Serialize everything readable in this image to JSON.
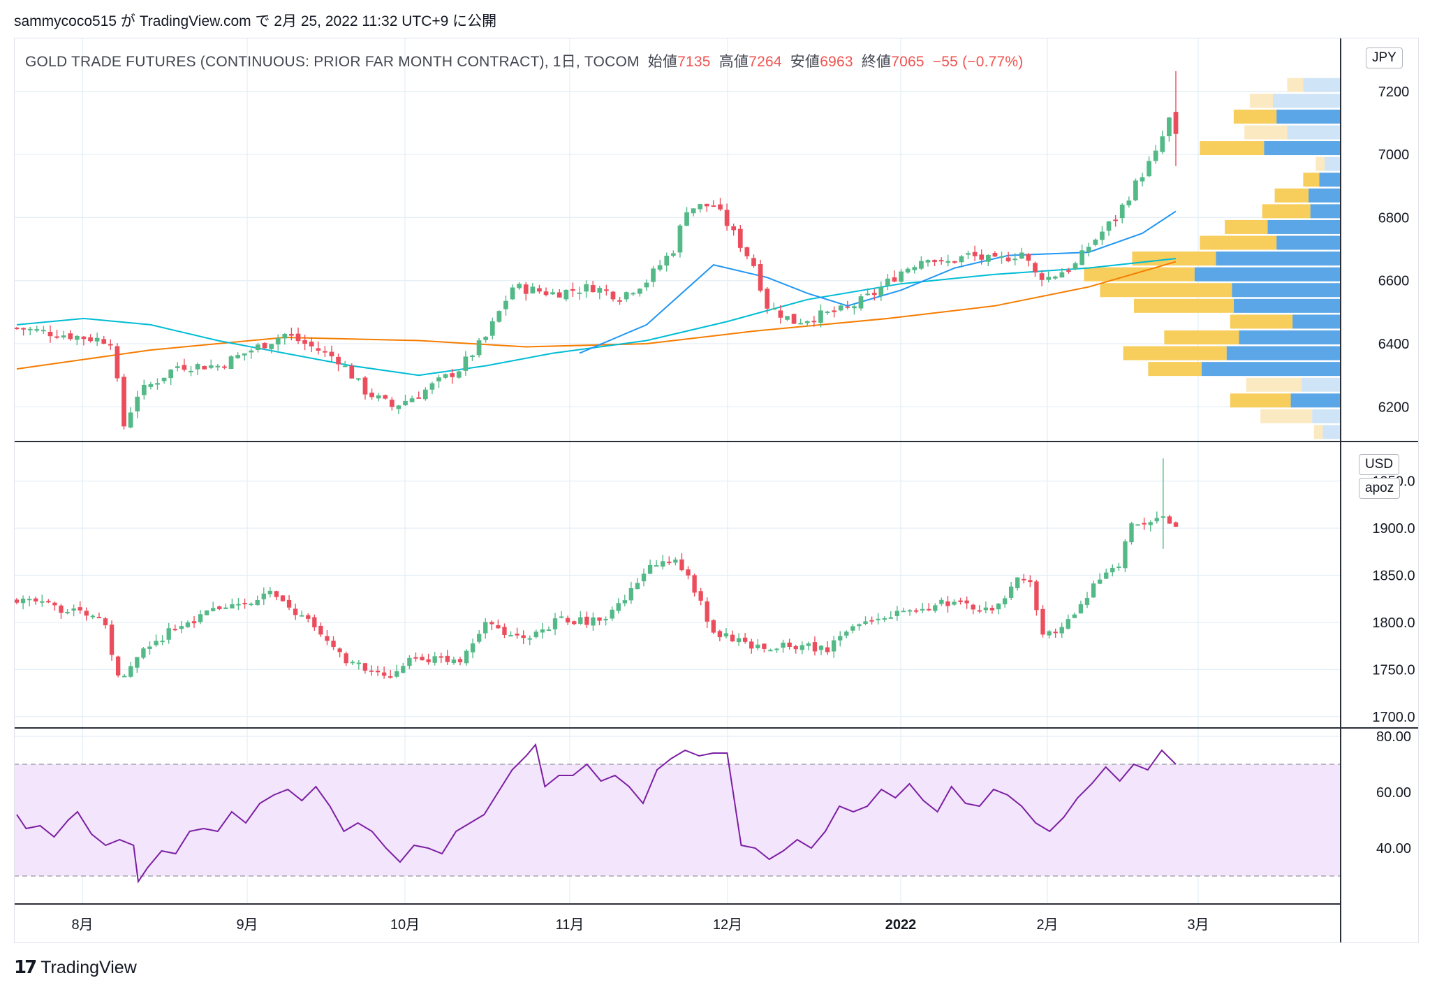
{
  "header": "sammycoco515 が TradingView.com で 2月 25, 2022 11:32 UTC+9 に公開",
  "legend": {
    "symbol": "GOLD TRADE FUTURES (CONTINUOUS: PRIOR FAR MONTH CONTRACT), 1日, TOCOM",
    "open_label": "始値",
    "open": "7135",
    "high_label": "高値",
    "high": "7264",
    "low_label": "安値",
    "low": "6963",
    "close_label": "終値",
    "close": "7065",
    "change": "−55 (−0.77%)"
  },
  "badges": {
    "main_currency": "JPY",
    "mid_currency": "USD",
    "mid_symbol": "apoz"
  },
  "footer": {
    "logo_mark": "17",
    "brand": "TradingView"
  },
  "colors": {
    "up": "#26a69a",
    "candle_up": "#53b987",
    "down": "#eb4d5c",
    "sma_short": "#2196f3",
    "sma_mid": "#00bcd4",
    "sma_long": "#f57c00",
    "vp_up": "#5aa6e6",
    "vp_down": "#f7cd5c",
    "rsi_line": "#7b1fa2",
    "rsi_band": "#f3e5fb"
  },
  "chart_data": [
    {
      "type": "candlestick",
      "title": "GOLD TRADE FUTURES (CONTINUOUS: PRIOR FAR MONTH CONTRACT), 1日, TOCOM",
      "currency": "JPY",
      "x_ticks": [
        "8月",
        "9月",
        "10月",
        "11月",
        "12月",
        "2022",
        "2月",
        "3月"
      ],
      "y_ticks": [
        6200,
        6400,
        6600,
        6800,
        7000,
        7200
      ],
      "ylim": [
        6090,
        7370
      ],
      "waypoints_close": [
        [
          0,
          6450
        ],
        [
          10,
          6420
        ],
        [
          14,
          6410
        ],
        [
          16,
          6140
        ],
        [
          18,
          6240
        ],
        [
          24,
          6330
        ],
        [
          30,
          6330
        ],
        [
          40,
          6430
        ],
        [
          48,
          6350
        ],
        [
          52,
          6250
        ],
        [
          56,
          6200
        ],
        [
          60,
          6240
        ],
        [
          66,
          6320
        ],
        [
          70,
          6420
        ],
        [
          74,
          6580
        ],
        [
          80,
          6560
        ],
        [
          86,
          6580
        ],
        [
          90,
          6550
        ],
        [
          94,
          6600
        ],
        [
          98,
          6700
        ],
        [
          100,
          6830
        ],
        [
          104,
          6840
        ],
        [
          106,
          6780
        ],
        [
          110,
          6650
        ],
        [
          112,
          6520
        ],
        [
          116,
          6470
        ],
        [
          120,
          6490
        ],
        [
          124,
          6510
        ],
        [
          128,
          6560
        ],
        [
          132,
          6630
        ],
        [
          136,
          6680
        ],
        [
          138,
          6650
        ],
        [
          142,
          6680
        ],
        [
          146,
          6660
        ],
        [
          150,
          6690
        ],
        [
          152,
          6620
        ],
        [
          154,
          6610
        ],
        [
          158,
          6650
        ],
        [
          160,
          6710
        ],
        [
          164,
          6800
        ],
        [
          168,
          6940
        ],
        [
          170,
          7000
        ],
        [
          172,
          7110
        ],
        [
          173,
          7065
        ]
      ],
      "last_candle": {
        "open": 7135,
        "high": 7264,
        "low": 6963,
        "close": 7065
      },
      "sma_short": [
        [
          84,
          6370
        ],
        [
          94,
          6460
        ],
        [
          104,
          6650
        ],
        [
          112,
          6610
        ],
        [
          118,
          6560
        ],
        [
          124,
          6520
        ],
        [
          132,
          6570
        ],
        [
          140,
          6640
        ],
        [
          148,
          6680
        ],
        [
          160,
          6690
        ],
        [
          168,
          6750
        ],
        [
          173,
          6820
        ]
      ],
      "sma_mid": [
        [
          0,
          6460
        ],
        [
          10,
          6480
        ],
        [
          20,
          6460
        ],
        [
          30,
          6410
        ],
        [
          40,
          6370
        ],
        [
          50,
          6330
        ],
        [
          60,
          6300
        ],
        [
          70,
          6330
        ],
        [
          80,
          6370
        ],
        [
          94,
          6410
        ],
        [
          106,
          6470
        ],
        [
          118,
          6540
        ],
        [
          132,
          6590
        ],
        [
          146,
          6620
        ],
        [
          160,
          6640
        ],
        [
          173,
          6670
        ]
      ],
      "sma_long": [
        [
          0,
          6320
        ],
        [
          20,
          6380
        ],
        [
          40,
          6420
        ],
        [
          60,
          6410
        ],
        [
          76,
          6390
        ],
        [
          94,
          6400
        ],
        [
          110,
          6440
        ],
        [
          130,
          6480
        ],
        [
          146,
          6520
        ],
        [
          160,
          6580
        ],
        [
          173,
          6660
        ]
      ],
      "volume_profile": [
        {
          "price": 7220,
          "up": 0.21,
          "down": 0.09
        },
        {
          "price": 7170,
          "up": 0.38,
          "down": 0.13
        },
        {
          "price": 7120,
          "up": 0.36,
          "down": 0.24
        },
        {
          "price": 7070,
          "up": 0.3,
          "down": 0.24
        },
        {
          "price": 7020,
          "up": 0.43,
          "down": 0.36
        },
        {
          "price": 6970,
          "up": 0.09,
          "down": 0.05
        },
        {
          "price": 6920,
          "up": 0.12,
          "down": 0.09
        },
        {
          "price": 6870,
          "up": 0.18,
          "down": 0.19
        },
        {
          "price": 6820,
          "up": 0.17,
          "down": 0.27
        },
        {
          "price": 6770,
          "up": 0.41,
          "down": 0.24
        },
        {
          "price": 6720,
          "up": 0.36,
          "down": 0.43
        },
        {
          "price": 6670,
          "up": 0.7,
          "down": 0.47
        },
        {
          "price": 6620,
          "up": 0.82,
          "down": 0.62
        },
        {
          "price": 6570,
          "up": 0.61,
          "down": 0.74
        },
        {
          "price": 6520,
          "up": 0.6,
          "down": 0.56
        },
        {
          "price": 6470,
          "up": 0.27,
          "down": 0.35
        },
        {
          "price": 6420,
          "up": 0.57,
          "down": 0.42
        },
        {
          "price": 6370,
          "up": 0.64,
          "down": 0.58
        },
        {
          "price": 6320,
          "up": 0.78,
          "down": 0.3
        },
        {
          "price": 6270,
          "up": 0.22,
          "down": 0.31
        },
        {
          "price": 6220,
          "up": 0.28,
          "down": 0.34
        },
        {
          "price": 6170,
          "up": 0.16,
          "down": 0.29
        },
        {
          "price": 6120,
          "up": 0.1,
          "down": 0.05
        }
      ]
    },
    {
      "type": "candlestick",
      "currency": "USD",
      "symbol": "apoz",
      "y_ticks": [
        1700.0,
        1750.0,
        1800.0,
        1850.0,
        1900.0,
        1950.0
      ],
      "ylim": [
        1688,
        1992
      ],
      "waypoints_close": [
        [
          0,
          1825
        ],
        [
          10,
          1810
        ],
        [
          14,
          1800
        ],
        [
          16,
          1740
        ],
        [
          20,
          1770
        ],
        [
          24,
          1790
        ],
        [
          30,
          1810
        ],
        [
          38,
          1825
        ],
        [
          40,
          1830
        ],
        [
          46,
          1800
        ],
        [
          52,
          1760
        ],
        [
          58,
          1740
        ],
        [
          62,
          1760
        ],
        [
          70,
          1760
        ],
        [
          74,
          1800
        ],
        [
          80,
          1780
        ],
        [
          86,
          1805
        ],
        [
          90,
          1800
        ],
        [
          94,
          1810
        ],
        [
          98,
          1840
        ],
        [
          100,
          1860
        ],
        [
          104,
          1865
        ],
        [
          106,
          1850
        ],
        [
          110,
          1790
        ],
        [
          116,
          1775
        ],
        [
          124,
          1775
        ],
        [
          128,
          1770
        ],
        [
          132,
          1800
        ],
        [
          140,
          1810
        ],
        [
          146,
          1820
        ],
        [
          152,
          1815
        ],
        [
          154,
          1815
        ],
        [
          158,
          1845
        ],
        [
          160,
          1840
        ],
        [
          162,
          1785
        ],
        [
          166,
          1800
        ],
        [
          170,
          1840
        ],
        [
          174,
          1860
        ],
        [
          176,
          1905
        ],
        [
          178,
          1900
        ],
        [
          180,
          1915
        ],
        [
          183,
          1905
        ]
      ],
      "spike": {
        "index": 181,
        "high": 1974,
        "low": 1878
      }
    },
    {
      "type": "line",
      "name": "RSI",
      "y_ticks": [
        40.0,
        60.0,
        80.0
      ],
      "ylim": [
        20,
        83
      ],
      "band": [
        30,
        70
      ],
      "points": [
        [
          0,
          52
        ],
        [
          2,
          47
        ],
        [
          5,
          48
        ],
        [
          8,
          44
        ],
        [
          11,
          50
        ],
        [
          13,
          53
        ],
        [
          16,
          45
        ],
        [
          19,
          41
        ],
        [
          22,
          43
        ],
        [
          25,
          41
        ],
        [
          26,
          28
        ],
        [
          28,
          33
        ],
        [
          31,
          39
        ],
        [
          34,
          38
        ],
        [
          37,
          46
        ],
        [
          40,
          47
        ],
        [
          43,
          46
        ],
        [
          46,
          53
        ],
        [
          49,
          49
        ],
        [
          52,
          56
        ],
        [
          55,
          59
        ],
        [
          58,
          61
        ],
        [
          61,
          57
        ],
        [
          64,
          62
        ],
        [
          67,
          55
        ],
        [
          70,
          46
        ],
        [
          73,
          49
        ],
        [
          76,
          46
        ],
        [
          79,
          40
        ],
        [
          82,
          35
        ],
        [
          85,
          41
        ],
        [
          88,
          40
        ],
        [
          91,
          38
        ],
        [
          94,
          46
        ],
        [
          97,
          49
        ],
        [
          100,
          52
        ],
        [
          103,
          60
        ],
        [
          106,
          68
        ],
        [
          109,
          73
        ],
        [
          111,
          77
        ],
        [
          113,
          62
        ],
        [
          116,
          66
        ],
        [
          119,
          66
        ],
        [
          122,
          70
        ],
        [
          125,
          64
        ],
        [
          128,
          66
        ],
        [
          131,
          62
        ],
        [
          134,
          56
        ],
        [
          137,
          68
        ],
        [
          140,
          72
        ],
        [
          143,
          75
        ],
        [
          146,
          73
        ],
        [
          149,
          74
        ],
        [
          152,
          74
        ],
        [
          155,
          41
        ],
        [
          158,
          40
        ],
        [
          161,
          36
        ],
        [
          164,
          39
        ],
        [
          167,
          43
        ],
        [
          170,
          40
        ],
        [
          173,
          46
        ],
        [
          176,
          55
        ],
        [
          179,
          53
        ],
        [
          182,
          55
        ],
        [
          185,
          61
        ],
        [
          188,
          58
        ],
        [
          191,
          63
        ],
        [
          194,
          57
        ],
        [
          197,
          53
        ],
        [
          200,
          62
        ],
        [
          203,
          56
        ],
        [
          206,
          55
        ],
        [
          209,
          61
        ],
        [
          212,
          59
        ],
        [
          215,
          55
        ],
        [
          218,
          49
        ],
        [
          221,
          46
        ],
        [
          224,
          51
        ],
        [
          227,
          58
        ],
        [
          230,
          63
        ],
        [
          233,
          69
        ],
        [
          236,
          64
        ],
        [
          239,
          70
        ],
        [
          242,
          68
        ],
        [
          245,
          75
        ],
        [
          248,
          70
        ]
      ]
    }
  ]
}
